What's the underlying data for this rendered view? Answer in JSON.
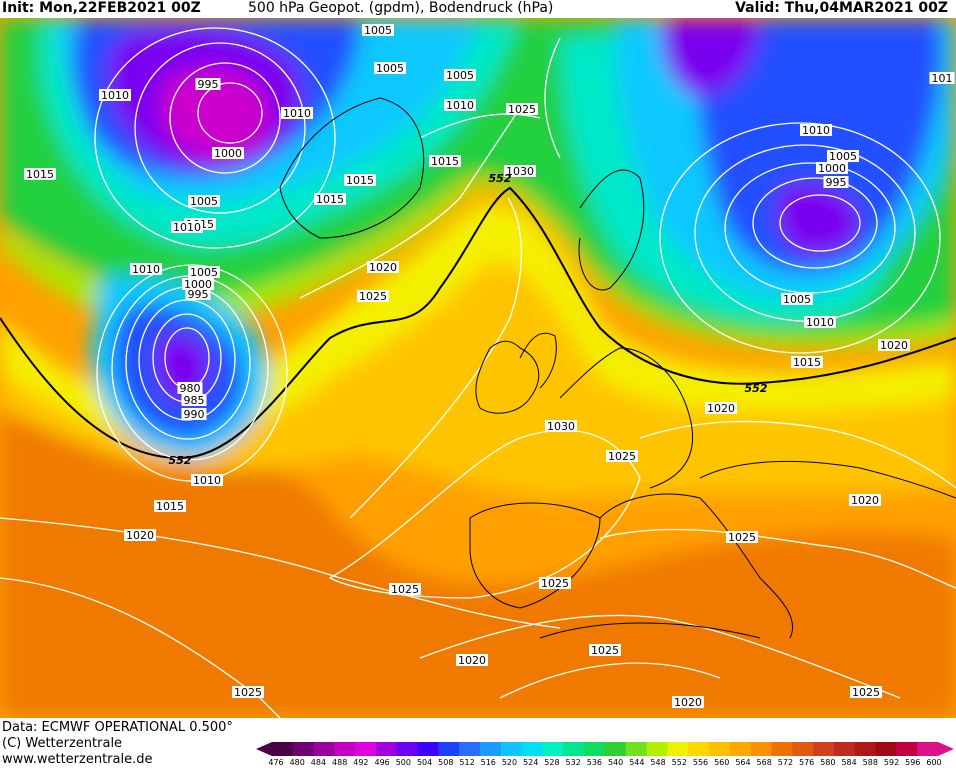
{
  "header": {
    "init": "Init: Mon,22FEB2021 00Z",
    "title": "500 hPa Geopot. (gpdm), Bodendruck (hPa)",
    "valid": "Valid: Thu,04MAR2021 00Z"
  },
  "footer": {
    "data": "Data: ECMWF OPERATIONAL 0.500°",
    "copyright": "(C) Wetterzentrale",
    "url": "www.wetterzentrale.de"
  },
  "legend": {
    "ticks": [
      "476",
      "480",
      "484",
      "488",
      "492",
      "496",
      "500",
      "504",
      "508",
      "512",
      "516",
      "520",
      "524",
      "528",
      "532",
      "536",
      "540",
      "544",
      "548",
      "552",
      "556",
      "560",
      "564",
      "568",
      "572",
      "576",
      "580",
      "584",
      "588",
      "592",
      "596",
      "600"
    ],
    "colors": [
      "#4b0045",
      "#6e0070",
      "#9a009e",
      "#c400c6",
      "#e000e0",
      "#a000e0",
      "#6a00f0",
      "#3c00ff",
      "#2040ff",
      "#2a6cff",
      "#1c9cff",
      "#10c4ff",
      "#00e0f0",
      "#00f0c0",
      "#00e690",
      "#10dc60",
      "#30d030",
      "#70e020",
      "#b0f000",
      "#f0f000",
      "#ffd800",
      "#ffc000",
      "#ffa800",
      "#ff9000",
      "#f07000",
      "#e05a10",
      "#d04020",
      "#c02a20",
      "#b01818",
      "#a00a14",
      "#c00040",
      "#e0108a"
    ]
  },
  "map": {
    "colors": {
      "magenta": "#cc00cc",
      "violet": "#7a00f0",
      "blue": "#2050ff",
      "cyan": "#10c8ff",
      "turquoise": "#00e8c8",
      "green": "#20d040",
      "lime": "#a8e800",
      "yellow": "#f4f000",
      "gold": "#ffc400",
      "orange": "#ffa000",
      "darkorange": "#f07a00",
      "red": "#d84020",
      "darkred": "#b02018"
    },
    "pressure_labels": [
      {
        "id": "l1",
        "text": "1005"
      },
      {
        "id": "l2",
        "text": "995"
      },
      {
        "id": "l3",
        "text": "1010"
      },
      {
        "id": "l4",
        "text": "1010"
      },
      {
        "id": "l5",
        "text": "1005"
      },
      {
        "id": "l6",
        "text": "1005"
      },
      {
        "id": "l7",
        "text": "1010"
      },
      {
        "id": "l8",
        "text": "1025"
      },
      {
        "id": "l9",
        "text": "1015"
      },
      {
        "id": "l10",
        "text": "1015"
      },
      {
        "id": "l11",
        "text": "1000"
      },
      {
        "id": "l12",
        "text": "1015"
      },
      {
        "id": "l13",
        "text": "1015"
      },
      {
        "id": "l14",
        "text": "1005"
      },
      {
        "id": "l15",
        "text": "1015"
      },
      {
        "id": "l16",
        "text": "1010"
      },
      {
        "id": "l17",
        "text": "1020"
      },
      {
        "id": "l18",
        "text": "1030"
      },
      {
        "id": "l19",
        "text": "1010"
      },
      {
        "id": "l20",
        "text": "1005"
      },
      {
        "id": "l21",
        "text": "1000"
      },
      {
        "id": "l22",
        "text": "995"
      },
      {
        "id": "l23",
        "text": "1025"
      },
      {
        "id": "l24",
        "text": "980"
      },
      {
        "id": "l25",
        "text": "985"
      },
      {
        "id": "l26",
        "text": "990"
      },
      {
        "id": "l27",
        "text": "1010"
      },
      {
        "id": "l28",
        "text": "1015"
      },
      {
        "id": "l29",
        "text": "1020"
      },
      {
        "id": "l30",
        "text": "1030"
      },
      {
        "id": "l31",
        "text": "1025"
      },
      {
        "id": "l32",
        "text": "1025"
      },
      {
        "id": "l33",
        "text": "1025"
      },
      {
        "id": "l34",
        "text": "1025"
      },
      {
        "id": "l35",
        "text": "1020"
      },
      {
        "id": "l36",
        "text": "1025"
      },
      {
        "id": "l37",
        "text": "1020"
      },
      {
        "id": "l38",
        "text": "1025"
      },
      {
        "id": "l39",
        "text": "1025"
      },
      {
        "id": "l40",
        "text": "1020"
      },
      {
        "id": "l41",
        "text": "1015"
      },
      {
        "id": "l42",
        "text": "1010"
      },
      {
        "id": "l43",
        "text": "1005"
      },
      {
        "id": "l44",
        "text": "1000"
      },
      {
        "id": "l45",
        "text": "995"
      },
      {
        "id": "l46",
        "text": "1010"
      },
      {
        "id": "l47",
        "text": "1005"
      },
      {
        "id": "l48",
        "text": "1010"
      },
      {
        "id": "l49",
        "text": "1015"
      },
      {
        "id": "l50",
        "text": "1020"
      },
      {
        "id": "l51",
        "text": "1020"
      },
      {
        "id": "l52",
        "text": "1020"
      },
      {
        "id": "l53",
        "text": "1025"
      },
      {
        "id": "l54",
        "text": "1005"
      },
      {
        "id": "l55",
        "text": "101"
      }
    ],
    "geopot_labels": [
      {
        "id": "g1",
        "text": "552"
      },
      {
        "id": "g2",
        "text": "552"
      },
      {
        "id": "g3",
        "text": "552"
      }
    ]
  }
}
